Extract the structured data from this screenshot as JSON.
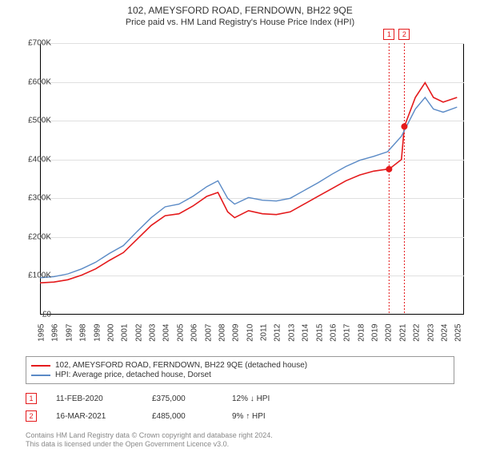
{
  "title": "102, AMEYSFORD ROAD, FERNDOWN, BH22 9QE",
  "subtitle": "Price paid vs. HM Land Registry's House Price Index (HPI)",
  "chart": {
    "type": "line",
    "background_color": "#ffffff",
    "grid_color": "#e0e0e0",
    "border_color": "#000000",
    "ylim": [
      0,
      700000
    ],
    "ytick_step": 100000,
    "ytick_labels": [
      "£0",
      "£100K",
      "£200K",
      "£300K",
      "£400K",
      "£500K",
      "£600K",
      "£700K"
    ],
    "xlim": [
      1995,
      2025.5
    ],
    "xticks": [
      1995,
      1996,
      1997,
      1998,
      1999,
      2000,
      2001,
      2002,
      2003,
      2004,
      2005,
      2006,
      2007,
      2008,
      2009,
      2010,
      2011,
      2012,
      2013,
      2014,
      2015,
      2016,
      2017,
      2018,
      2019,
      2020,
      2021,
      2022,
      2023,
      2024,
      2025
    ],
    "series": [
      {
        "name": "102, AMEYSFORD ROAD, FERNDOWN, BH22 9QE (detached house)",
        "color": "#e41a1c",
        "line_width": 1.6,
        "xy": [
          [
            1995,
            82000
          ],
          [
            1996,
            84000
          ],
          [
            1997,
            90000
          ],
          [
            1998,
            102000
          ],
          [
            1999,
            118000
          ],
          [
            2000,
            140000
          ],
          [
            2001,
            160000
          ],
          [
            2002,
            195000
          ],
          [
            2003,
            230000
          ],
          [
            2004,
            255000
          ],
          [
            2005,
            260000
          ],
          [
            2006,
            280000
          ],
          [
            2007,
            305000
          ],
          [
            2007.8,
            315000
          ],
          [
            2008.5,
            265000
          ],
          [
            2009,
            250000
          ],
          [
            2010,
            268000
          ],
          [
            2011,
            260000
          ],
          [
            2012,
            258000
          ],
          [
            2013,
            265000
          ],
          [
            2014,
            285000
          ],
          [
            2015,
            305000
          ],
          [
            2016,
            325000
          ],
          [
            2017,
            345000
          ],
          [
            2018,
            360000
          ],
          [
            2019,
            370000
          ],
          [
            2020,
            375000
          ],
          [
            2020.11,
            375000
          ],
          [
            2021,
            400000
          ],
          [
            2021.21,
            485000
          ],
          [
            2022,
            560000
          ],
          [
            2022.7,
            598000
          ],
          [
            2023.3,
            560000
          ],
          [
            2024,
            548000
          ],
          [
            2025,
            560000
          ]
        ]
      },
      {
        "name": "HPI: Average price, detached house, Dorset",
        "color": "#5a8ac6",
        "line_width": 1.4,
        "xy": [
          [
            1995,
            95000
          ],
          [
            1996,
            98000
          ],
          [
            1997,
            105000
          ],
          [
            1998,
            118000
          ],
          [
            1999,
            135000
          ],
          [
            2000,
            158000
          ],
          [
            2001,
            178000
          ],
          [
            2002,
            215000
          ],
          [
            2003,
            250000
          ],
          [
            2004,
            278000
          ],
          [
            2005,
            285000
          ],
          [
            2006,
            305000
          ],
          [
            2007,
            330000
          ],
          [
            2007.8,
            345000
          ],
          [
            2008.5,
            300000
          ],
          [
            2009,
            285000
          ],
          [
            2010,
            302000
          ],
          [
            2011,
            295000
          ],
          [
            2012,
            293000
          ],
          [
            2013,
            300000
          ],
          [
            2014,
            320000
          ],
          [
            2015,
            340000
          ],
          [
            2016,
            362000
          ],
          [
            2017,
            382000
          ],
          [
            2018,
            398000
          ],
          [
            2019,
            408000
          ],
          [
            2020,
            420000
          ],
          [
            2021,
            460000
          ],
          [
            2022,
            530000
          ],
          [
            2022.7,
            560000
          ],
          [
            2023.3,
            530000
          ],
          [
            2024,
            522000
          ],
          [
            2025,
            535000
          ]
        ]
      }
    ],
    "sale_points": [
      {
        "label": "1",
        "x": 2020.11,
        "y": 375000,
        "color": "#e41a1c"
      },
      {
        "label": "2",
        "x": 2021.21,
        "y": 485000,
        "color": "#e41a1c"
      }
    ],
    "ref_lines": [
      {
        "x": 2020.11,
        "color": "#e41a1c"
      },
      {
        "x": 2021.21,
        "color": "#e41a1c"
      }
    ]
  },
  "legend": {
    "items": [
      {
        "label": "102, AMEYSFORD ROAD, FERNDOWN, BH22 9QE (detached house)",
        "color": "#e41a1c"
      },
      {
        "label": "HPI: Average price, detached house, Dorset",
        "color": "#5a8ac6"
      }
    ]
  },
  "sales": [
    {
      "marker": "1",
      "marker_color": "#e41a1c",
      "date": "11-FEB-2020",
      "price": "£375,000",
      "diff": "12% ↓ HPI"
    },
    {
      "marker": "2",
      "marker_color": "#e41a1c",
      "date": "16-MAR-2021",
      "price": "£485,000",
      "diff": "9% ↑ HPI"
    }
  ],
  "footer_line1": "Contains HM Land Registry data © Crown copyright and database right 2024.",
  "footer_line2": "This data is licensed under the Open Government Licence v3.0."
}
